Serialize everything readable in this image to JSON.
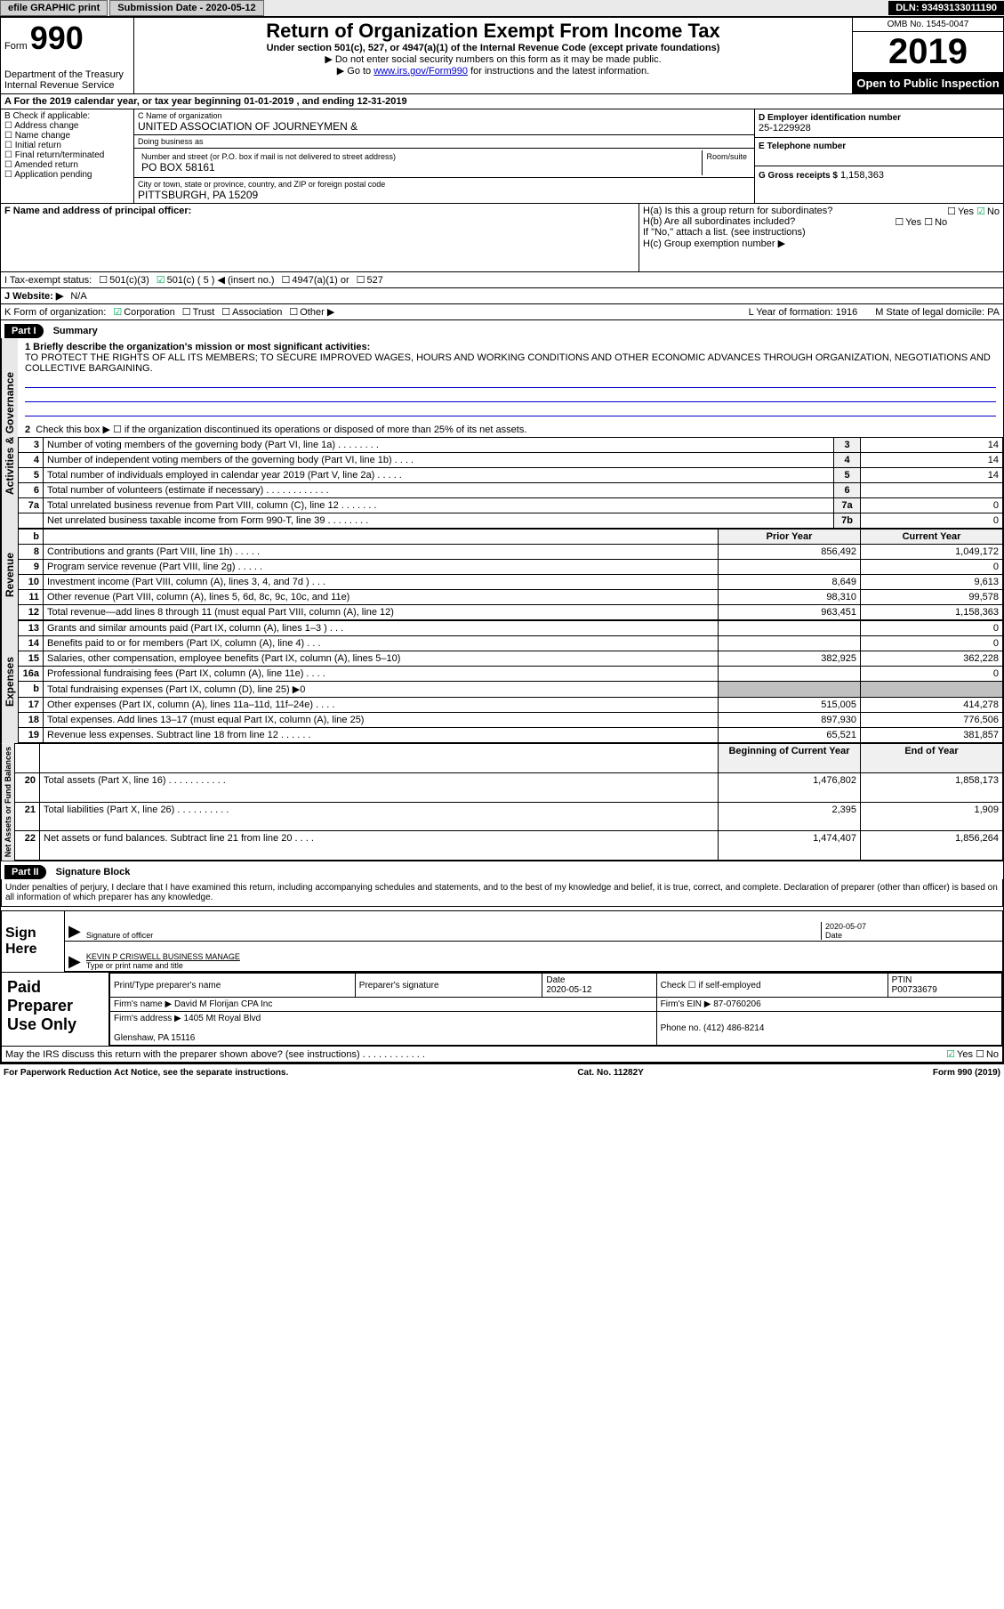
{
  "topbar": {
    "efile": "efile GRAPHIC print",
    "submission": "Submission Date - 2020-05-12",
    "dln": "DLN: 93493133011190"
  },
  "header": {
    "form_label": "Form",
    "form_number": "990",
    "dept": "Department of the Treasury\nInternal Revenue Service",
    "title": "Return of Organization Exempt From Income Tax",
    "subtitle": "Under section 501(c), 527, or 4947(a)(1) of the Internal Revenue Code (except private foundations)",
    "note1": "Do not enter social security numbers on this form as it may be made public.",
    "note2_prefix": "Go to ",
    "note2_link": "www.irs.gov/Form990",
    "note2_suffix": " for instructions and the latest information.",
    "omb": "OMB No. 1545-0047",
    "year": "2019",
    "inspection": "Open to Public Inspection"
  },
  "row_a": "A For the 2019 calendar year, or tax year beginning 01-01-2019  , and ending 12-31-2019",
  "col_b": {
    "label": "B Check if applicable:",
    "items": [
      "Address change",
      "Name change",
      "Initial return",
      "Final return/terminated",
      "Amended return",
      "Application pending"
    ]
  },
  "col_c": {
    "name_lbl": "C Name of organization",
    "name_val": "UNITED ASSOCIATION OF JOURNEYMEN &",
    "dba_lbl": "Doing business as",
    "dba_val": "",
    "addr_lbl": "Number and street (or P.O. box if mail is not delivered to street address)",
    "room_lbl": "Room/suite",
    "addr_val": "PO BOX 58161",
    "city_lbl": "City or town, state or province, country, and ZIP or foreign postal code",
    "city_val": "PITTSBURGH, PA  15209"
  },
  "col_d": {
    "ein_lbl": "D Employer identification number",
    "ein_val": "25-1229928",
    "tel_lbl": "E Telephone number",
    "tel_val": "",
    "gross_lbl": "G Gross receipts $",
    "gross_val": "1,158,363"
  },
  "row_f": {
    "left_lbl": "F  Name and address of principal officer:",
    "ha": "H(a)  Is this a group return for subordinates?",
    "hb": "H(b)  Are all subordinates included?",
    "hb_note": "If \"No,\" attach a list. (see instructions)",
    "hc": "H(c)  Group exemption number ▶"
  },
  "tax_row": {
    "label": "I  Tax-exempt status:",
    "opts": [
      "501(c)(3)",
      "501(c) ( 5 ) ◀ (insert no.)",
      "4947(a)(1) or",
      "527"
    ]
  },
  "web_row": {
    "label": "J  Website: ▶",
    "val": "N/A"
  },
  "korg": {
    "label": "K Form of organization:",
    "opts": [
      "Corporation",
      "Trust",
      "Association",
      "Other ▶"
    ],
    "l": "L Year of formation: 1916",
    "m": "M State of legal domicile: PA"
  },
  "part1": {
    "hdr": "Part I",
    "title": "Summary",
    "mission_lbl": "1  Briefly describe the organization's mission or most significant activities:",
    "mission_val": "TO PROTECT THE RIGHTS OF ALL ITS MEMBERS; TO SECURE IMPROVED WAGES, HOURS AND WORKING CONDITIONS AND OTHER ECONOMIC ADVANCES THROUGH ORGANIZATION, NEGOTIATIONS AND COLLECTIVE BARGAINING.",
    "line2": "Check this box ▶ ☐  if the organization discontinued its operations or disposed of more than 25% of its net assets.",
    "sections": {
      "activities": "Activities & Governance",
      "revenue": "Revenue",
      "expenses": "Expenses",
      "netassets": "Net Assets or Fund Balances"
    },
    "rows_gov": [
      {
        "n": "3",
        "d": "Number of voting members of the governing body (Part VI, line 1a)  .  .  .  .  .  .  .  .",
        "b": "3",
        "v": "14"
      },
      {
        "n": "4",
        "d": "Number of independent voting members of the governing body (Part VI, line 1b)  .  .  .  .",
        "b": "4",
        "v": "14"
      },
      {
        "n": "5",
        "d": "Total number of individuals employed in calendar year 2019 (Part V, line 2a)  .  .  .  .  .",
        "b": "5",
        "v": "14"
      },
      {
        "n": "6",
        "d": "Total number of volunteers (estimate if necessary)  .  .  .  .  .  .  .  .  .  .  .  .",
        "b": "6",
        "v": ""
      },
      {
        "n": "7a",
        "d": "Total unrelated business revenue from Part VIII, column (C), line 12  .  .  .  .  .  .  .",
        "b": "7a",
        "v": "0"
      },
      {
        "n": "",
        "d": "Net unrelated business taxable income from Form 990-T, line 39  .  .  .  .  .  .  .  .",
        "b": "7b",
        "v": "0"
      }
    ],
    "col_hdr_prior": "Prior Year",
    "col_hdr_curr": "Current Year",
    "rows_rev": [
      {
        "n": "8",
        "d": "Contributions and grants (Part VIII, line 1h)  .  .  .  .  .",
        "p": "856,492",
        "c": "1,049,172"
      },
      {
        "n": "9",
        "d": "Program service revenue (Part VIII, line 2g)  .  .  .  .  .",
        "p": "",
        "c": "0"
      },
      {
        "n": "10",
        "d": "Investment income (Part VIII, column (A), lines 3, 4, and 7d )  .  .  .",
        "p": "8,649",
        "c": "9,613"
      },
      {
        "n": "11",
        "d": "Other revenue (Part VIII, column (A), lines 5, 6d, 8c, 9c, 10c, and 11e)",
        "p": "98,310",
        "c": "99,578"
      },
      {
        "n": "12",
        "d": "Total revenue—add lines 8 through 11 (must equal Part VIII, column (A), line 12)",
        "p": "963,451",
        "c": "1,158,363"
      }
    ],
    "rows_exp": [
      {
        "n": "13",
        "d": "Grants and similar amounts paid (Part IX, column (A), lines 1–3 )  .  .  .",
        "p": "",
        "c": "0"
      },
      {
        "n": "14",
        "d": "Benefits paid to or for members (Part IX, column (A), line 4)  .  .  .",
        "p": "",
        "c": "0"
      },
      {
        "n": "15",
        "d": "Salaries, other compensation, employee benefits (Part IX, column (A), lines 5–10)",
        "p": "382,925",
        "c": "362,228"
      },
      {
        "n": "16a",
        "d": "Professional fundraising fees (Part IX, column (A), line 11e)  .  .  .  .",
        "p": "",
        "c": "0"
      },
      {
        "n": "b",
        "d": "Total fundraising expenses (Part IX, column (D), line 25) ▶0",
        "p": "SHADE",
        "c": "SHADE"
      },
      {
        "n": "17",
        "d": "Other expenses (Part IX, column (A), lines 11a–11d, 11f–24e)  .  .  .  .",
        "p": "515,005",
        "c": "414,278"
      },
      {
        "n": "18",
        "d": "Total expenses. Add lines 13–17 (must equal Part IX, column (A), line 25)",
        "p": "897,930",
        "c": "776,506"
      },
      {
        "n": "19",
        "d": "Revenue less expenses. Subtract line 18 from line 12  .  .  .  .  .  .",
        "p": "65,521",
        "c": "381,857"
      }
    ],
    "col_hdr_beg": "Beginning of Current Year",
    "col_hdr_end": "End of Year",
    "rows_net": [
      {
        "n": "20",
        "d": "Total assets (Part X, line 16)  .  .  .  .  .  .  .  .  .  .  .",
        "p": "1,476,802",
        "c": "1,858,173"
      },
      {
        "n": "21",
        "d": "Total liabilities (Part X, line 26)  .  .  .  .  .  .  .  .  .  .",
        "p": "2,395",
        "c": "1,909"
      },
      {
        "n": "22",
        "d": "Net assets or fund balances. Subtract line 21 from line 20  .  .  .  .",
        "p": "1,474,407",
        "c": "1,856,264"
      }
    ]
  },
  "part2": {
    "hdr": "Part II",
    "title": "Signature Block",
    "declaration": "Under penalties of perjury, I declare that I have examined this return, including accompanying schedules and statements, and to the best of my knowledge and belief, it is true, correct, and complete. Declaration of preparer (other than officer) is based on all information of which preparer has any knowledge.",
    "sign_here": "Sign Here",
    "sig_officer": "Signature of officer",
    "sig_date": "2020-05-07",
    "sig_date_lbl": "Date",
    "sig_name": "KEVIN P CRISWELL  BUSINESS MANAGE",
    "sig_name_lbl": "Type or print name and title",
    "paid": "Paid Preparer Use Only",
    "prep_name_lbl": "Print/Type preparer's name",
    "prep_sig_lbl": "Preparer's signature",
    "prep_date_lbl": "Date",
    "prep_date": "2020-05-12",
    "prep_check": "Check ☐ if self-employed",
    "ptin_lbl": "PTIN",
    "ptin": "P00733679",
    "firm_name_lbl": "Firm's name    ▶",
    "firm_name": "David M Florijan CPA Inc",
    "firm_ein_lbl": "Firm's EIN ▶",
    "firm_ein": "87-0760206",
    "firm_addr_lbl": "Firm's address ▶",
    "firm_addr": "1405 Mt Royal Blvd",
    "firm_city": "Glenshaw, PA  15116",
    "phone_lbl": "Phone no.",
    "phone": "(412) 486-8214",
    "irs_q": "May the IRS discuss this return with the preparer shown above? (see instructions)  .   .   .   .   .   .   .   .   .   .   .   .",
    "irs_yes": "Yes",
    "irs_no": "No"
  },
  "footer": {
    "left": "For Paperwork Reduction Act Notice, see the separate instructions.",
    "center": "Cat. No. 11282Y",
    "right": "Form 990 (2019)"
  }
}
